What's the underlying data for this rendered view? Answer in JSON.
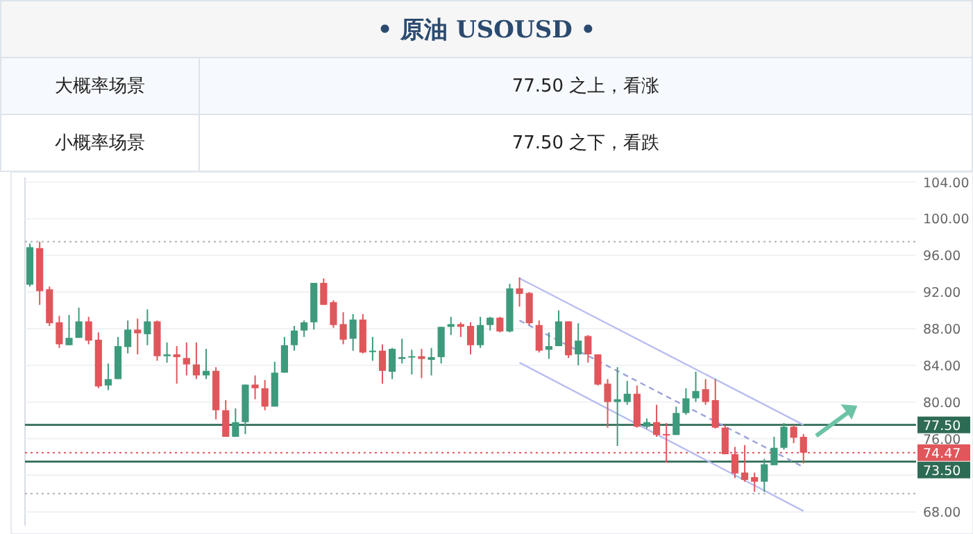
{
  "chart_data": {
    "type": "candlestick",
    "title": "• 原油 USOUSD •",
    "annotations": [
      "大概率场景",
      "77.50 之上，看涨",
      "小概率场景",
      "77.50 之下，看跌"
    ],
    "categories": [
      null,
      null,
      null,
      null,
      null,
      null,
      null,
      null,
      null,
      null,
      null,
      null,
      null,
      null,
      null,
      null,
      null,
      null,
      null,
      null,
      null,
      null,
      null,
      null,
      null,
      null,
      null,
      null,
      null,
      null,
      null,
      null,
      null,
      null,
      null,
      null,
      null,
      null,
      null,
      null,
      null,
      null,
      null,
      null,
      null,
      null,
      null,
      null,
      null,
      null,
      null,
      null,
      null,
      null,
      null,
      null,
      null,
      null,
      null,
      null,
      null,
      null,
      null,
      null,
      null,
      null,
      null,
      null,
      null,
      null,
      null,
      null,
      null,
      null,
      null,
      null,
      null,
      null,
      null,
      null,
      null,
      null,
      null,
      null,
      null,
      null,
      null,
      null,
      null,
      null,
      null
    ],
    "ohlc": [
      [
        92.8,
        97.3,
        92.6,
        96.9
      ],
      [
        96.8,
        97.5,
        90.6,
        92.1
      ],
      [
        92.3,
        92.6,
        88.3,
        88.6
      ],
      [
        88.7,
        89.4,
        85.9,
        86.3
      ],
      [
        86.2,
        89.5,
        86.2,
        87.0
      ],
      [
        87.0,
        90.3,
        87.0,
        88.8
      ],
      [
        88.8,
        89.3,
        86.3,
        86.7
      ],
      [
        86.8,
        87.6,
        81.5,
        81.7
      ],
      [
        81.8,
        84.2,
        81.3,
        82.5
      ],
      [
        82.5,
        87.1,
        82.5,
        86.1
      ],
      [
        86.0,
        88.9,
        85.3,
        87.9
      ],
      [
        87.9,
        89.1,
        85.2,
        87.5
      ],
      [
        87.4,
        90.1,
        86.2,
        88.8
      ],
      [
        88.8,
        88.9,
        84.5,
        85.0
      ],
      [
        85.0,
        86.5,
        84.3,
        85.2
      ],
      [
        85.2,
        86.1,
        82.0,
        84.9
      ],
      [
        84.8,
        86.5,
        82.9,
        84.1
      ],
      [
        84.1,
        86.5,
        82.5,
        82.9
      ],
      [
        82.9,
        85.8,
        82.5,
        83.4
      ],
      [
        83.4,
        83.8,
        78.1,
        79.1
      ],
      [
        79.1,
        80.2,
        76.2,
        76.2
      ],
      [
        76.2,
        79.3,
        76.2,
        77.8
      ],
      [
        77.8,
        81.9,
        76.5,
        81.9
      ],
      [
        81.9,
        82.9,
        80.3,
        81.5
      ],
      [
        81.5,
        82.4,
        79.1,
        79.5
      ],
      [
        79.5,
        84.4,
        79.5,
        83.2
      ],
      [
        83.2,
        87.1,
        83.2,
        86.2
      ],
      [
        86.2,
        88.3,
        85.6,
        87.8
      ],
      [
        87.8,
        88.9,
        87.1,
        88.7
      ],
      [
        88.7,
        93.0,
        87.9,
        93.0
      ],
      [
        93.0,
        93.5,
        90.6,
        90.6
      ],
      [
        90.9,
        91.1,
        88.1,
        88.4
      ],
      [
        88.5,
        89.8,
        86.3,
        86.8
      ],
      [
        86.9,
        89.6,
        85.6,
        89.0
      ],
      [
        89.0,
        89.6,
        85.3,
        85.4
      ],
      [
        85.5,
        87.1,
        84.5,
        85.6
      ],
      [
        85.6,
        86.3,
        82.0,
        83.4
      ],
      [
        83.3,
        85.9,
        82.5,
        85.8
      ],
      [
        84.7,
        86.9,
        84.2,
        84.9
      ],
      [
        84.9,
        85.7,
        83.0,
        85.0
      ],
      [
        85.0,
        85.8,
        82.6,
        84.7
      ],
      [
        84.6,
        85.9,
        82.9,
        84.9
      ],
      [
        84.9,
        88.2,
        84.2,
        88.2
      ],
      [
        88.2,
        89.3,
        87.3,
        88.5
      ],
      [
        88.5,
        88.7,
        87.1,
        88.2
      ],
      [
        88.3,
        88.7,
        85.2,
        86.2
      ],
      [
        86.2,
        89.3,
        85.9,
        88.4
      ],
      [
        88.4,
        89.3,
        87.8,
        89.2
      ],
      [
        89.2,
        89.3,
        87.6,
        87.7
      ],
      [
        87.7,
        92.9,
        87.6,
        92.4
      ],
      [
        92.4,
        93.6,
        90.4,
        91.8
      ],
      [
        91.9,
        92.0,
        88.4,
        88.6
      ],
      [
        88.4,
        88.9,
        85.4,
        85.6
      ],
      [
        85.7,
        87.6,
        84.7,
        86.1
      ],
      [
        86.1,
        90.0,
        86.1,
        88.8
      ],
      [
        88.8,
        88.8,
        84.8,
        85.1
      ],
      [
        85.2,
        88.6,
        84.0,
        86.7
      ],
      [
        87.2,
        87.3,
        84.3,
        85.2
      ],
      [
        85.2,
        85.2,
        81.8,
        81.9
      ],
      [
        82.0,
        82.5,
        77.2,
        80.0
      ],
      [
        80.0,
        83.8,
        75.2,
        80.3
      ],
      [
        80.0,
        82.3,
        79.7,
        80.9
      ],
      [
        80.9,
        81.8,
        77.2,
        77.3
      ],
      [
        77.3,
        78.2,
        77.1,
        77.8
      ],
      [
        77.8,
        79.7,
        76.2,
        76.4
      ],
      [
        76.5,
        77.7,
        73.4,
        76.4
      ],
      [
        76.4,
        79.5,
        76.4,
        78.8
      ],
      [
        78.8,
        81.5,
        78.6,
        80.4
      ],
      [
        80.4,
        83.3,
        80.0,
        81.2
      ],
      [
        81.4,
        82.5,
        79.7,
        80.0
      ],
      [
        80.2,
        82.5,
        77.1,
        77.2
      ],
      [
        77.2,
        77.5,
        74.3,
        74.3
      ],
      [
        74.3,
        75.1,
        71.7,
        72.2
      ],
      [
        72.3,
        75.3,
        71.3,
        71.5
      ],
      [
        71.8,
        72.3,
        70.2,
        71.3
      ],
      [
        71.3,
        73.8,
        70.2,
        73.2
      ],
      [
        73.1,
        76.2,
        73.1,
        75.0
      ],
      [
        75.0,
        77.7,
        74.8,
        77.3
      ],
      [
        77.3,
        77.5,
        75.5,
        76.1
      ],
      [
        76.2,
        76.5,
        73.3,
        74.47
      ],
      null,
      null,
      null,
      null,
      null,
      null,
      null,
      null,
      null,
      null,
      null
    ],
    "colors": [
      "#3e9a7d",
      "#e0565b",
      "#e0565b",
      "#e0565b",
      "#3e9a7d",
      "#3e9a7d",
      "#e0565b",
      "#e0565b",
      "#3e9a7d",
      "#3e9a7d",
      "#3e9a7d",
      "#e0565b",
      "#3e9a7d",
      "#e0565b",
      "#3e9a7d",
      "#e0565b",
      "#e0565b",
      "#e0565b",
      "#3e9a7d",
      "#e0565b",
      "#e0565b",
      "#3e9a7d",
      "#3e9a7d",
      "#e0565b",
      "#e0565b",
      "#3e9a7d",
      "#3e9a7d",
      "#3e9a7d",
      "#3e9a7d",
      "#3e9a7d",
      "#e0565b",
      "#e0565b",
      "#e0565b",
      "#3e9a7d",
      "#e0565b",
      "#3e9a7d",
      "#e0565b",
      "#3e9a7d",
      "#3e9a7d",
      "#3e9a7d",
      "#e0565b",
      "#3e9a7d",
      "#3e9a7d",
      "#3e9a7d",
      "#e0565b",
      "#e0565b",
      "#3e9a7d",
      "#3e9a7d",
      "#e0565b",
      "#3e9a7d",
      "#e0565b",
      "#e0565b",
      "#e0565b",
      "#3e9a7d",
      "#3e9a7d",
      "#e0565b",
      "#3e9a7d",
      "#e0565b",
      "#e0565b",
      "#e0565b",
      "#3e9a7d",
      "#3e9a7d",
      "#e0565b",
      "#3e9a7d",
      "#e0565b",
      "#e0565b",
      "#3e9a7d",
      "#3e9a7d",
      "#3e9a7d",
      "#e0565b",
      "#e0565b",
      "#e0565b",
      "#e0565b",
      "#e0565b",
      "#e0565b",
      "#3e9a7d",
      "#3e9a7d",
      "#3e9a7d",
      "#e0565b",
      "#e0565b",
      null,
      null,
      null,
      null,
      null,
      null,
      null,
      null,
      null,
      null,
      null
    ],
    "series": [
      {
        "type": "line",
        "color": "#b9bdf0",
        "line_style": "solid",
        "values": [
          null,
          null,
          null,
          null,
          null,
          null,
          null,
          null,
          null,
          null,
          null,
          null,
          null,
          null,
          null,
          null,
          null,
          null,
          null,
          null,
          null,
          null,
          null,
          null,
          null,
          null,
          null,
          null,
          null,
          null,
          null,
          null,
          null,
          null,
          null,
          null,
          null,
          null,
          null,
          null,
          null,
          null,
          null,
          null,
          null,
          null,
          null,
          null,
          null,
          null,
          93.5,
          null,
          null,
          null,
          null,
          null,
          null,
          null,
          null,
          null,
          null,
          null,
          null,
          null,
          null,
          null,
          null,
          null,
          null,
          null,
          null,
          null,
          null,
          null,
          null,
          null,
          null,
          null,
          null,
          77.5,
          null,
          null,
          null,
          null,
          null,
          null,
          null,
          null,
          null,
          null,
          null
        ]
      },
      {
        "type": "line",
        "color": "#9ca3d8",
        "line_style": "dashed",
        "values": [
          null,
          null,
          null,
          null,
          null,
          null,
          null,
          null,
          null,
          null,
          null,
          null,
          null,
          null,
          null,
          null,
          null,
          null,
          null,
          null,
          null,
          null,
          null,
          null,
          null,
          null,
          null,
          null,
          null,
          null,
          null,
          null,
          null,
          null,
          null,
          null,
          null,
          null,
          null,
          null,
          null,
          null,
          null,
          null,
          null,
          null,
          null,
          null,
          null,
          null,
          88.9,
          null,
          null,
          null,
          null,
          null,
          null,
          null,
          null,
          null,
          null,
          null,
          null,
          null,
          null,
          null,
          null,
          null,
          null,
          null,
          null,
          null,
          null,
          null,
          null,
          null,
          null,
          null,
          null,
          72.9,
          null,
          null,
          null,
          null,
          null,
          null,
          null,
          null,
          null,
          null,
          null
        ]
      },
      {
        "type": "line",
        "color": "#b9bdf0",
        "line_style": "solid",
        "values": [
          null,
          null,
          null,
          null,
          null,
          null,
          null,
          null,
          null,
          null,
          null,
          null,
          null,
          null,
          null,
          null,
          null,
          null,
          null,
          null,
          null,
          null,
          null,
          null,
          null,
          null,
          null,
          null,
          null,
          null,
          null,
          null,
          null,
          null,
          null,
          null,
          null,
          null,
          null,
          null,
          null,
          null,
          null,
          null,
          null,
          null,
          null,
          null,
          null,
          null,
          84.3,
          null,
          null,
          null,
          null,
          null,
          null,
          null,
          null,
          null,
          null,
          null,
          null,
          null,
          null,
          null,
          null,
          null,
          null,
          null,
          null,
          null,
          null,
          null,
          null,
          null,
          null,
          null,
          null,
          68.1,
          null,
          null,
          null,
          null,
          null,
          null,
          null,
          null,
          null,
          null,
          null
        ]
      }
    ],
    "ylim": [
      66.5,
      104.5
    ],
    "yticks": [
      {
        "value": 68,
        "label": "68.00"
      },
      {
        "value": 72,
        "label": null
      },
      {
        "value": 76,
        "label": "76.00"
      },
      {
        "value": 80,
        "label": "80.00"
      },
      {
        "value": 84,
        "label": "84.00"
      },
      {
        "value": 88,
        "label": "88.00"
      },
      {
        "value": 92,
        "label": "92.00"
      },
      {
        "value": 96,
        "label": "96.00"
      },
      {
        "value": 100,
        "label": "100.00"
      },
      {
        "value": 104,
        "label": "104.00"
      }
    ],
    "ref_lines": [
      {
        "axis": "y",
        "value": 97.5,
        "color": "#b0b0b0",
        "line_style": "dotted"
      },
      {
        "axis": "y",
        "value": 70.0,
        "color": "#b0b0b0",
        "line_style": "dotted"
      },
      {
        "axis": "y",
        "value": 74.47,
        "label": "74.47",
        "color": "#e0565b",
        "line_style": "dotted"
      },
      {
        "axis": "y",
        "value": 77.5,
        "label": "77.50",
        "color": "#2e6b55",
        "line_style": "solid"
      },
      {
        "axis": "y",
        "value": 73.5,
        "label": "73.50",
        "color": "#2e6b55",
        "line_style": "solid"
      }
    ],
    "grid": "y",
    "tick_labels": "y"
  }
}
